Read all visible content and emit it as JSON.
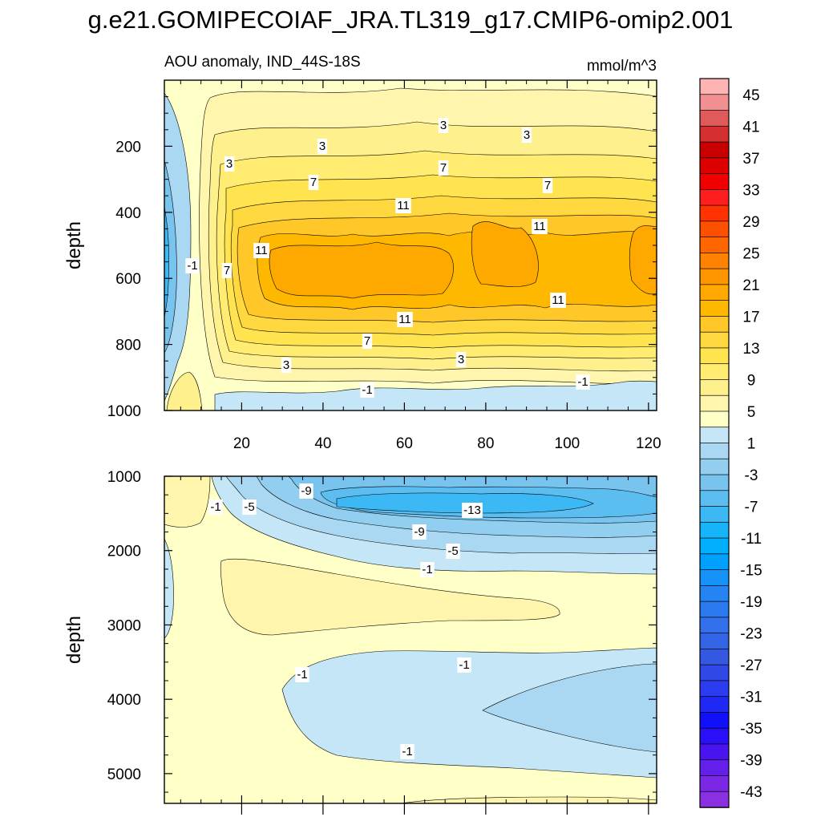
{
  "chart_data": {
    "type": "heatmap",
    "title": "g.e21.GOMIPECOIAF_JRA.TL319_g17.CMIP6-omip2.001",
    "subtitle_left": "AOU anomaly, IND_44S-18S",
    "subtitle_right": "mmol/m^3",
    "ylabel": "depth",
    "xlabel": "",
    "x_ticks": [
      20,
      40,
      60,
      80,
      100,
      120
    ],
    "xlim": [
      1,
      122
    ],
    "panels": [
      {
        "name": "upper",
        "ylim": [
          0,
          1000
        ],
        "y_ticks": [
          200,
          400,
          600,
          800,
          1000
        ],
        "contour_labels": [
          "3",
          "3",
          "3",
          "3",
          "7",
          "7",
          "7",
          "11",
          "11",
          "11",
          "11",
          "11",
          "-1",
          "7",
          "3",
          "7",
          "3",
          "-1",
          "-1"
        ]
      },
      {
        "name": "lower",
        "ylim": [
          1000,
          5400
        ],
        "y_ticks": [
          1000,
          2000,
          3000,
          4000,
          5000
        ],
        "contour_labels": [
          "-1",
          "-5",
          "-9",
          "-13",
          "-9",
          "-5",
          "-1",
          "-1",
          "-1",
          "-1"
        ]
      }
    ],
    "colorbar": {
      "labels": [
        "45",
        "41",
        "37",
        "33",
        "29",
        "25",
        "21",
        "17",
        "13",
        "9",
        "5",
        "1",
        "-3",
        "-7",
        "-11",
        "-15",
        "-19",
        "-23",
        "-27",
        "-31",
        "-35",
        "-39",
        "-43"
      ],
      "colors": [
        "#ffb4b4",
        "#f09090",
        "#e05a5a",
        "#d43030",
        "#c80000",
        "#dc0000",
        "#f00000",
        "#ff1e1e",
        "#ff3200",
        "#ff5000",
        "#ff6600",
        "#ff8200",
        "#ff9600",
        "#ffa800",
        "#ffb800",
        "#ffc828",
        "#ffd840",
        "#ffe450",
        "#ffec70",
        "#fff08e",
        "#fff5ac",
        "#ffffc8",
        "#c4e6f6",
        "#aad8f2",
        "#92ceef",
        "#78c4ee",
        "#5cbef0",
        "#3cb8f4",
        "#16b4f8",
        "#00b0ff",
        "#00a0ff",
        "#1492f8",
        "#2484f4",
        "#2c7af0",
        "#3270ec",
        "#3464e6",
        "#3458e2",
        "#3048e6",
        "#2c3cf0",
        "#2028f4",
        "#1010fa",
        "#2a10f6",
        "#4a14f0",
        "#6420ea",
        "#7a28e6",
        "#8a30e2"
      ]
    }
  }
}
